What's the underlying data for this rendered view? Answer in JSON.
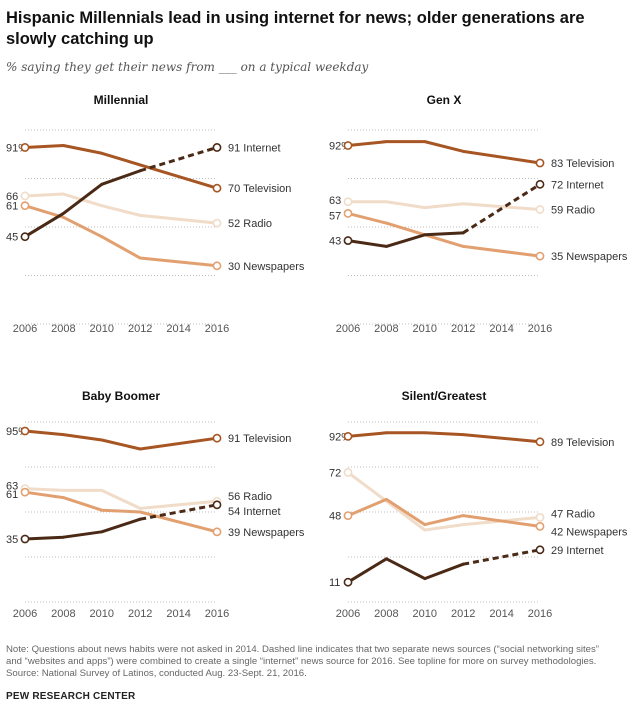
{
  "title": "Hispanic Millennials lead in using internet for news; older generations are slowly catching up",
  "subtitle": "% saying they get their news from ___ on a typical weekday",
  "colors": {
    "Internet": "#4a2a16",
    "Television": "#a75623",
    "Radio": "#f0dcc8",
    "Newspapers": "#e2a070",
    "grid": "#bdbdbd",
    "text": "#333333"
  },
  "chart_data": [
    {
      "type": "line",
      "title": "Millennial",
      "x": [
        2006,
        2008,
        2010,
        2012,
        2014,
        2016
      ],
      "ylim": [
        0,
        100
      ],
      "start_labels": [
        "91%",
        "66",
        "61",
        "45"
      ],
      "series": [
        {
          "name": "Television",
          "points": [
            [
              2006,
              91
            ],
            [
              2008,
              92
            ],
            [
              2010,
              88
            ],
            [
              2012,
              82
            ],
            [
              2016,
              70
            ]
          ],
          "end_label": "70 Television"
        },
        {
          "name": "Radio",
          "points": [
            [
              2006,
              66
            ],
            [
              2008,
              67
            ],
            [
              2010,
              61
            ],
            [
              2012,
              56
            ],
            [
              2016,
              52
            ]
          ],
          "end_label": "52 Radio"
        },
        {
          "name": "Newspapers",
          "points": [
            [
              2006,
              61
            ],
            [
              2008,
              55
            ],
            [
              2010,
              45
            ],
            [
              2012,
              34
            ],
            [
              2016,
              30
            ]
          ],
          "end_label": "30 Newspapers"
        },
        {
          "name": "Internet",
          "points": [
            [
              2006,
              45
            ],
            [
              2008,
              57
            ],
            [
              2010,
              72
            ],
            [
              2012,
              79
            ],
            [
              2016,
              91
            ]
          ],
          "end_label": "91 Internet",
          "dashed_from": 2012
        }
      ]
    },
    {
      "type": "line",
      "title": "Gen X",
      "x": [
        2006,
        2008,
        2010,
        2012,
        2014,
        2016
      ],
      "ylim": [
        0,
        100
      ],
      "start_labels": [
        "92%",
        "63",
        "57",
        "43"
      ],
      "series": [
        {
          "name": "Television",
          "points": [
            [
              2006,
              92
            ],
            [
              2008,
              94
            ],
            [
              2010,
              94
            ],
            [
              2012,
              89
            ],
            [
              2016,
              83
            ]
          ],
          "end_label": "83 Television"
        },
        {
          "name": "Radio",
          "points": [
            [
              2006,
              63
            ],
            [
              2008,
              63
            ],
            [
              2010,
              60
            ],
            [
              2012,
              62
            ],
            [
              2016,
              59
            ]
          ],
          "end_label": "59 Radio"
        },
        {
          "name": "Newspapers",
          "points": [
            [
              2006,
              57
            ],
            [
              2008,
              52
            ],
            [
              2010,
              46
            ],
            [
              2012,
              40
            ],
            [
              2016,
              35
            ]
          ],
          "end_label": "35 Newspapers"
        },
        {
          "name": "Internet",
          "points": [
            [
              2006,
              43
            ],
            [
              2008,
              40
            ],
            [
              2010,
              46
            ],
            [
              2012,
              47
            ],
            [
              2016,
              72
            ]
          ],
          "end_label": "72 Internet",
          "dashed_from": 2012
        }
      ]
    },
    {
      "type": "line",
      "title": "Baby Boomer",
      "x": [
        2006,
        2008,
        2010,
        2012,
        2014,
        2016
      ],
      "ylim": [
        0,
        100
      ],
      "start_labels": [
        "95%",
        "63",
        "61",
        "35"
      ],
      "series": [
        {
          "name": "Television",
          "points": [
            [
              2006,
              95
            ],
            [
              2008,
              93
            ],
            [
              2010,
              90
            ],
            [
              2012,
              85
            ],
            [
              2016,
              91
            ]
          ],
          "end_label": "91 Television"
        },
        {
          "name": "Radio",
          "points": [
            [
              2006,
              63
            ],
            [
              2008,
              62
            ],
            [
              2010,
              62
            ],
            [
              2012,
              52
            ],
            [
              2016,
              56
            ]
          ],
          "end_label": "56 Radio"
        },
        {
          "name": "Newspapers",
          "points": [
            [
              2006,
              61
            ],
            [
              2008,
              58
            ],
            [
              2010,
              51
            ],
            [
              2012,
              50
            ],
            [
              2016,
              39
            ]
          ],
          "end_label": "39 Newspapers"
        },
        {
          "name": "Internet",
          "points": [
            [
              2006,
              35
            ],
            [
              2008,
              36
            ],
            [
              2010,
              39
            ],
            [
              2012,
              46
            ],
            [
              2016,
              54
            ]
          ],
          "end_label": "54 Internet",
          "dashed_from": 2012
        }
      ]
    },
    {
      "type": "line",
      "title": "Silent/Greatest",
      "x": [
        2006,
        2008,
        2010,
        2012,
        2014,
        2016
      ],
      "ylim": [
        0,
        100
      ],
      "start_labels": [
        "92%",
        "72",
        "48",
        "11"
      ],
      "series": [
        {
          "name": "Television",
          "points": [
            [
              2006,
              92
            ],
            [
              2008,
              94
            ],
            [
              2010,
              94
            ],
            [
              2012,
              93
            ],
            [
              2016,
              89
            ]
          ],
          "end_label": "89 Television"
        },
        {
          "name": "Radio",
          "points": [
            [
              2006,
              72
            ],
            [
              2008,
              56
            ],
            [
              2010,
              40
            ],
            [
              2012,
              43
            ],
            [
              2016,
              47
            ]
          ],
          "end_label": "47 Radio"
        },
        {
          "name": "Newspapers",
          "points": [
            [
              2006,
              48
            ],
            [
              2008,
              57
            ],
            [
              2010,
              43
            ],
            [
              2012,
              48
            ],
            [
              2016,
              42
            ]
          ],
          "end_label": "42 Newspapers"
        },
        {
          "name": "Internet",
          "points": [
            [
              2006,
              11
            ],
            [
              2008,
              24
            ],
            [
              2010,
              13
            ],
            [
              2012,
              21
            ],
            [
              2016,
              29
            ]
          ],
          "end_label": "29 Internet",
          "dashed_from": 2012
        }
      ]
    }
  ],
  "note_lines": [
    "Note: Questions about news habits were not asked in 2014. Dashed line indicates that two separate news sources (“social networking sites”",
    "and “websites and apps”) were combined to create a single “internet” news source for 2016. See topline for more on survey methodologies.",
    "Source: National Survey of Latinos, conducted Aug. 23-Sept. 21, 2016."
  ],
  "brand": "PEW RESEARCH CENTER"
}
